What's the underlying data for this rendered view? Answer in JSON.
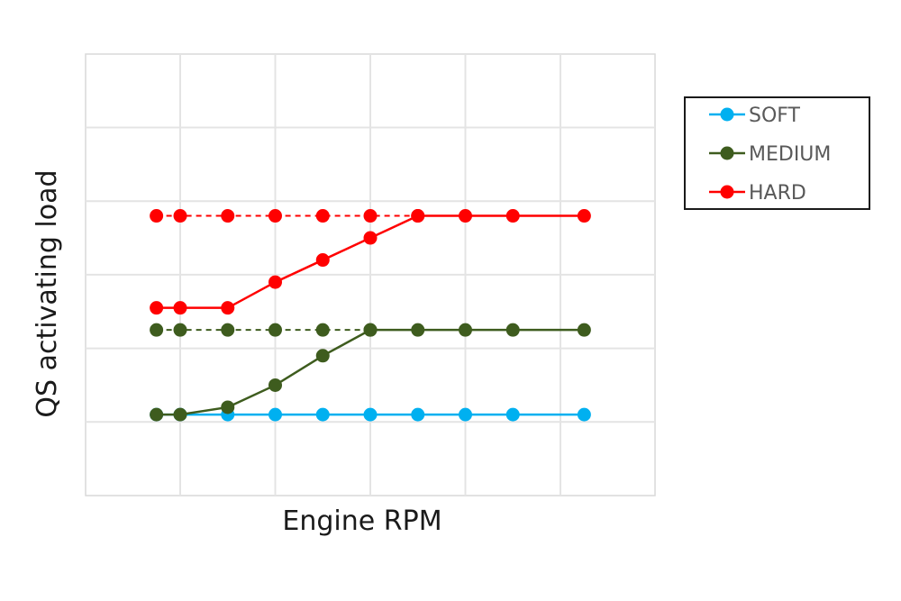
{
  "chart_data": {
    "type": "line",
    "title": "",
    "xlabel": "Engine RPM",
    "ylabel": "QS activating load",
    "x_ticks_labeled": false,
    "y_ticks_labeled": false,
    "xlim": [
      0,
      6
    ],
    "ylim": [
      0,
      6
    ],
    "grid": true,
    "legend_position": "right",
    "x": [
      -0.25,
      0,
      0.5,
      1,
      1.5,
      2,
      2.5,
      3,
      3.5,
      4.25
    ],
    "series": [
      {
        "name": "SOFT",
        "color": "#00B0F0",
        "values": [
          1.1,
          1.1,
          1.1,
          1.1,
          1.1,
          1.1,
          1.1,
          1.1,
          1.1,
          1.1
        ]
      },
      {
        "name": "MEDIUM",
        "color": "#3E5C1E",
        "values": [
          1.1,
          1.1,
          1.2,
          1.5,
          1.9,
          2.25,
          2.25,
          2.25,
          2.25,
          2.25
        ],
        "dashed_reference": {
          "start_index": 0,
          "end_index": 5,
          "value": 2.25
        }
      },
      {
        "name": "HARD",
        "color": "#FF0000",
        "values": [
          2.55,
          2.55,
          2.55,
          2.9,
          3.2,
          3.5,
          3.8,
          3.8,
          3.8,
          3.8
        ],
        "dashed_reference": {
          "start_index": 0,
          "end_index": 6,
          "value": 3.8
        }
      }
    ]
  }
}
